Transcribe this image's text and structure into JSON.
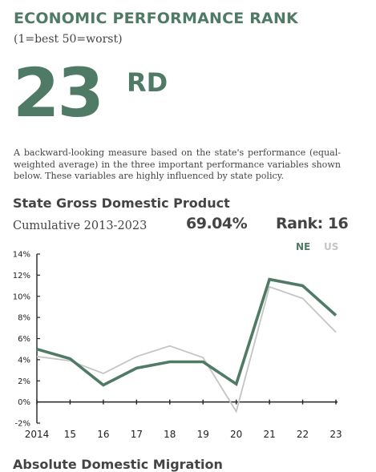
{
  "header": {
    "title": "ECONOMIC PERFORMANCE RANK",
    "subtitle": "(1=best 50=worst)",
    "rank_number": "23",
    "rank_suffix": "RD",
    "description": "A backward-looking measure based on the state's performance (equal-weighted average) in the three important performance variables shown below. These variables are highly influenced by state policy."
  },
  "section": {
    "title": "State Gross Domestic Product",
    "cumulative_label": "Cumulative 2013-2023",
    "cumulative_value": "69.04%",
    "rank_text": "Rank: 16",
    "legend_ne": "NE",
    "legend_us": "US"
  },
  "next_section": {
    "title": "Absolute Domestic Migration"
  },
  "colors": {
    "accent": "#4f7a66",
    "us_line": "#c4c4c4",
    "text": "#444444"
  },
  "chart_data": {
    "type": "line",
    "x": [
      "2014",
      "15",
      "16",
      "17",
      "18",
      "19",
      "20",
      "21",
      "22",
      "23"
    ],
    "yticks": [
      "14%",
      "12%",
      "10%",
      "8%",
      "6%",
      "4%",
      "2%",
      "0%",
      "-2%"
    ],
    "ylim": [
      -2,
      14
    ],
    "series": [
      {
        "name": "NE",
        "color": "#4f7a66",
        "values": [
          5.0,
          4.1,
          1.6,
          3.2,
          3.8,
          3.8,
          1.7,
          11.6,
          11.0,
          8.2
        ]
      },
      {
        "name": "US",
        "color": "#c4c4c4",
        "values": [
          4.3,
          3.9,
          2.7,
          4.3,
          5.3,
          4.2,
          -0.9,
          10.9,
          9.8,
          6.6
        ]
      }
    ],
    "grid": false
  }
}
